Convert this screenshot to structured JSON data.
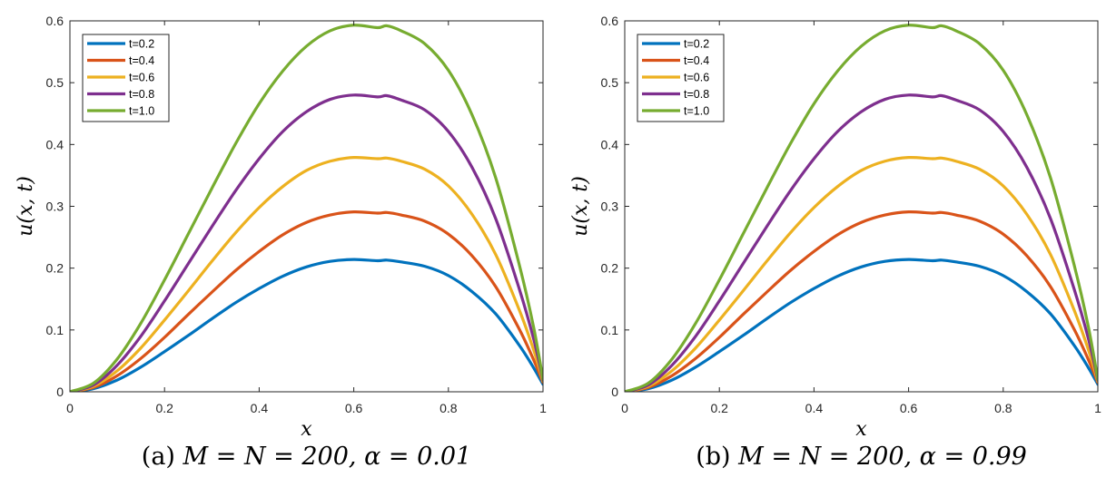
{
  "panels": [
    {
      "caption_prefix": "(a)",
      "caption_math": "M = N = 200, α = 0.01"
    },
    {
      "caption_prefix": "(b)",
      "caption_math": "M = N = 200, α = 0.99"
    }
  ],
  "series_colors": [
    "#0072BD",
    "#D95319",
    "#EDB120",
    "#7E2F8E",
    "#77AC30"
  ],
  "chart_data": [
    {
      "type": "line",
      "xlabel": "x",
      "ylabel": "u(x, t)",
      "xlim": [
        0,
        1
      ],
      "ylim": [
        0,
        0.6
      ],
      "xticks": [
        0,
        0.2,
        0.4,
        0.6,
        0.8,
        1
      ],
      "xtick_labels": [
        "0",
        "0.2",
        "0.4",
        "0.6",
        "0.8",
        "1"
      ],
      "yticks": [
        0,
        0.1,
        0.2,
        0.3,
        0.4,
        0.5,
        0.6
      ],
      "ytick_labels": [
        "0",
        "0.1",
        "0.2",
        "0.3",
        "0.4",
        "0.5",
        "0.6"
      ],
      "grid": false,
      "legend_position": "top-left",
      "x": [
        0,
        0.05,
        0.1,
        0.15,
        0.2,
        0.25,
        0.3,
        0.35,
        0.4,
        0.45,
        0.5,
        0.55,
        0.6,
        0.65,
        0.67,
        0.7,
        0.75,
        0.8,
        0.85,
        0.9,
        0.95,
        0.98,
        1.0
      ],
      "series": [
        {
          "name": "t=0.2",
          "values": [
            0,
            0.005,
            0.019,
            0.04,
            0.065,
            0.091,
            0.118,
            0.144,
            0.167,
            0.187,
            0.202,
            0.211,
            0.214,
            0.212,
            0.213,
            0.21,
            0.203,
            0.188,
            0.162,
            0.126,
            0.075,
            0.039,
            0.012
          ]
        },
        {
          "name": "t=0.4",
          "values": [
            0,
            0.007,
            0.026,
            0.054,
            0.088,
            0.125,
            0.161,
            0.196,
            0.227,
            0.254,
            0.274,
            0.286,
            0.291,
            0.289,
            0.29,
            0.286,
            0.276,
            0.255,
            0.22,
            0.17,
            0.101,
            0.052,
            0.015
          ]
        },
        {
          "name": "t=0.6",
          "values": [
            0,
            0.009,
            0.034,
            0.071,
            0.116,
            0.163,
            0.211,
            0.257,
            0.298,
            0.332,
            0.358,
            0.373,
            0.379,
            0.377,
            0.378,
            0.373,
            0.36,
            0.333,
            0.287,
            0.222,
            0.132,
            0.068,
            0.017
          ]
        },
        {
          "name": "t=0.8",
          "values": [
            0,
            0.011,
            0.043,
            0.09,
            0.147,
            0.207,
            0.267,
            0.325,
            0.377,
            0.421,
            0.453,
            0.473,
            0.48,
            0.477,
            0.479,
            0.472,
            0.456,
            0.421,
            0.363,
            0.28,
            0.166,
            0.086,
            0.019
          ]
        },
        {
          "name": "t=1.0",
          "values": [
            0,
            0.014,
            0.053,
            0.111,
            0.181,
            0.255,
            0.329,
            0.401,
            0.466,
            0.519,
            0.559,
            0.584,
            0.593,
            0.589,
            0.592,
            0.584,
            0.563,
            0.52,
            0.448,
            0.346,
            0.205,
            0.105,
            0.02
          ]
        }
      ]
    },
    {
      "type": "line",
      "xlabel": "x",
      "ylabel": "u(x, t)",
      "xlim": [
        0,
        1
      ],
      "ylim": [
        0,
        0.6
      ],
      "xticks": [
        0,
        0.2,
        0.4,
        0.6,
        0.8,
        1
      ],
      "xtick_labels": [
        "0",
        "0.2",
        "0.4",
        "0.6",
        "0.8",
        "1"
      ],
      "yticks": [
        0,
        0.1,
        0.2,
        0.3,
        0.4,
        0.5,
        0.6
      ],
      "ytick_labels": [
        "0",
        "0.1",
        "0.2",
        "0.3",
        "0.4",
        "0.5",
        "0.6"
      ],
      "grid": false,
      "legend_position": "top-left",
      "x": [
        0,
        0.05,
        0.1,
        0.15,
        0.2,
        0.25,
        0.3,
        0.35,
        0.4,
        0.45,
        0.5,
        0.55,
        0.6,
        0.65,
        0.67,
        0.7,
        0.75,
        0.8,
        0.85,
        0.9,
        0.95,
        0.98,
        1.0
      ],
      "series": [
        {
          "name": "t=0.2",
          "values": [
            0,
            0.005,
            0.019,
            0.04,
            0.065,
            0.091,
            0.118,
            0.144,
            0.167,
            0.187,
            0.202,
            0.211,
            0.214,
            0.212,
            0.213,
            0.21,
            0.203,
            0.188,
            0.162,
            0.126,
            0.075,
            0.039,
            0.012
          ]
        },
        {
          "name": "t=0.4",
          "values": [
            0,
            0.007,
            0.026,
            0.054,
            0.088,
            0.125,
            0.161,
            0.196,
            0.227,
            0.254,
            0.274,
            0.286,
            0.291,
            0.289,
            0.29,
            0.286,
            0.276,
            0.255,
            0.22,
            0.17,
            0.101,
            0.052,
            0.015
          ]
        },
        {
          "name": "t=0.6",
          "values": [
            0,
            0.009,
            0.034,
            0.071,
            0.116,
            0.163,
            0.211,
            0.257,
            0.298,
            0.332,
            0.358,
            0.373,
            0.379,
            0.377,
            0.378,
            0.373,
            0.36,
            0.333,
            0.287,
            0.222,
            0.132,
            0.068,
            0.017
          ]
        },
        {
          "name": "t=0.8",
          "values": [
            0,
            0.011,
            0.043,
            0.09,
            0.147,
            0.207,
            0.267,
            0.325,
            0.377,
            0.421,
            0.453,
            0.473,
            0.48,
            0.477,
            0.479,
            0.472,
            0.456,
            0.421,
            0.363,
            0.28,
            0.166,
            0.086,
            0.019
          ]
        },
        {
          "name": "t=1.0",
          "values": [
            0,
            0.014,
            0.053,
            0.111,
            0.181,
            0.255,
            0.329,
            0.401,
            0.466,
            0.519,
            0.559,
            0.584,
            0.593,
            0.589,
            0.592,
            0.584,
            0.563,
            0.52,
            0.448,
            0.346,
            0.205,
            0.105,
            0.02
          ]
        }
      ]
    }
  ]
}
